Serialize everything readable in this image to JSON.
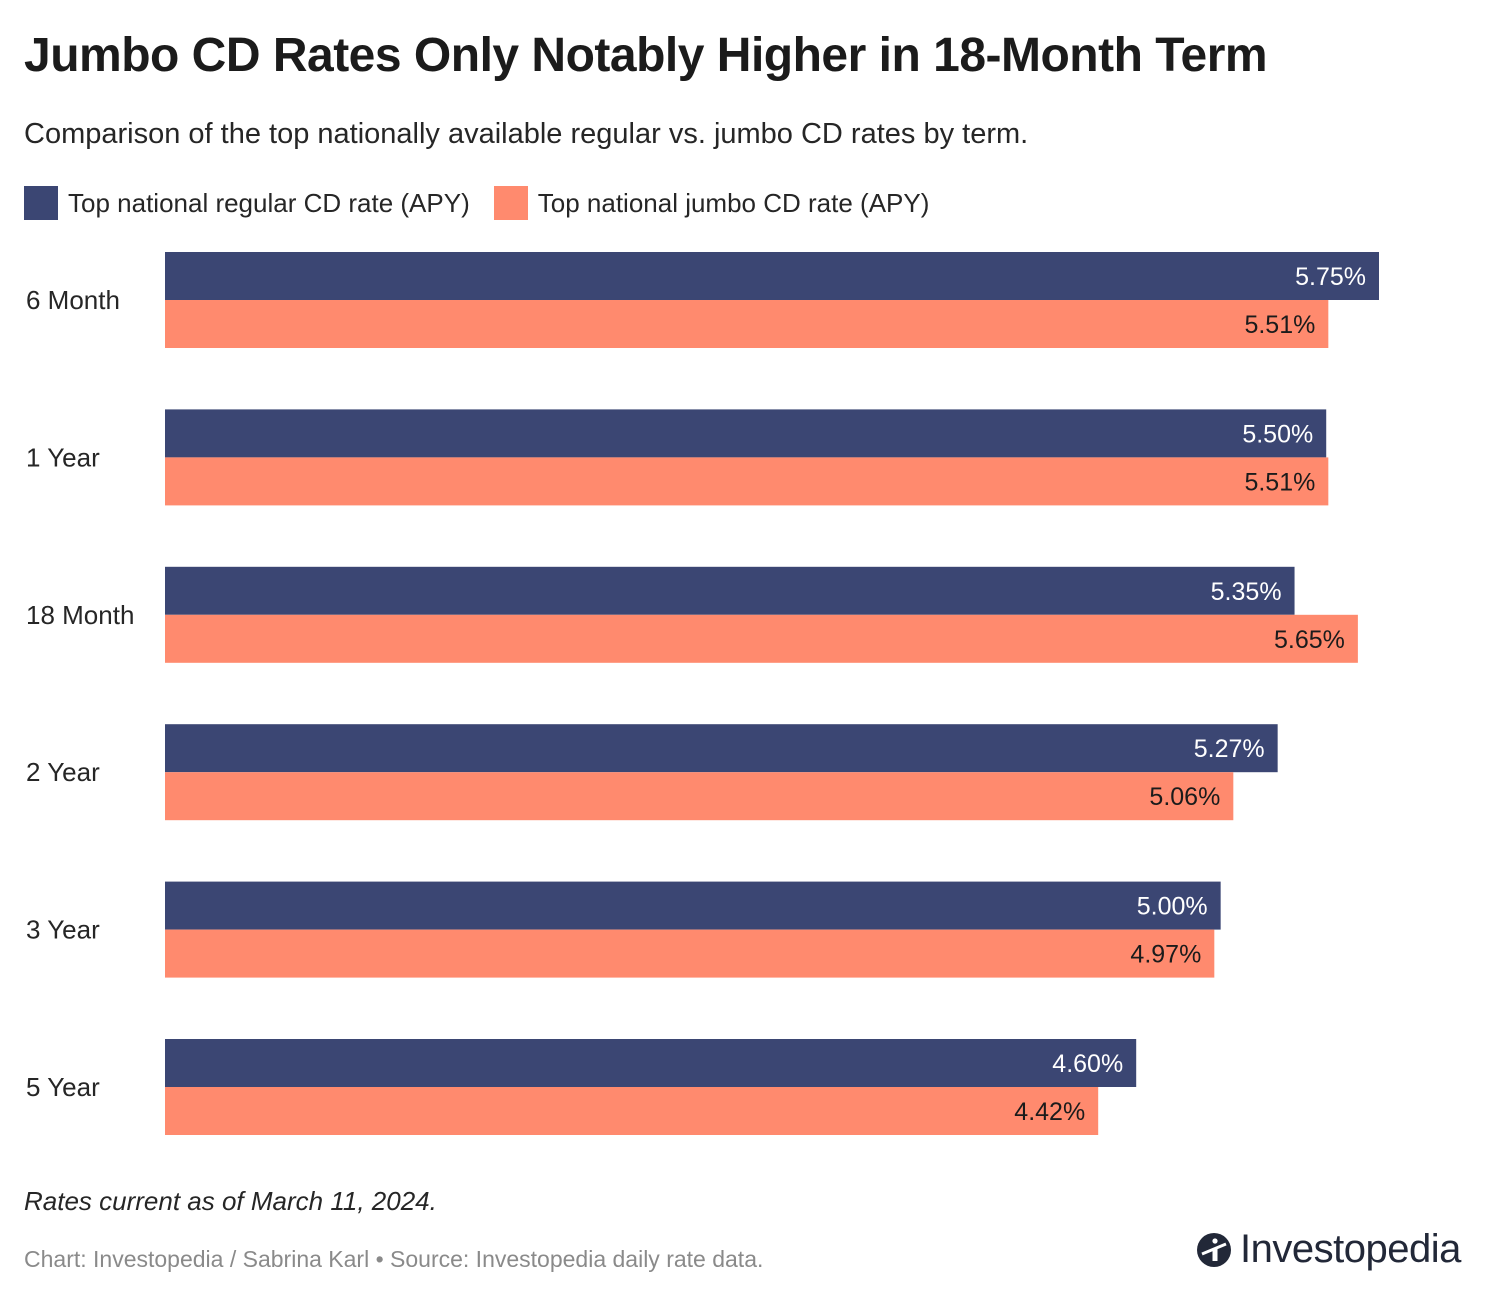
{
  "title": "Jumbo CD Rates Only Notably Higher in 18-Month Term",
  "subtitle": "Comparison of the top nationally available regular vs. jumbo CD rates by term.",
  "note": "Rates current as of March 11, 2024.",
  "credit": "Chart: Investopedia / Sabrina Karl • Source: Investopedia daily rate data.",
  "brand": {
    "name": "Investopedia",
    "icon": "investopedia-logo-icon"
  },
  "colors": {
    "regular": "#3b4673",
    "jumbo": "#ff8a6e",
    "regular_label": "#ffffff",
    "jumbo_label": "#1b1b1b"
  },
  "chart_data": {
    "type": "bar",
    "orientation": "horizontal",
    "categories": [
      "6 Month",
      "1 Year",
      "18 Month",
      "2 Year",
      "3 Year",
      "5 Year"
    ],
    "series": [
      {
        "name": "Top national regular CD rate (APY)",
        "values": [
          5.75,
          5.5,
          5.35,
          5.27,
          5.0,
          4.6
        ],
        "labels": [
          "5.75%",
          "5.50%",
          "5.35%",
          "5.27%",
          "5.00%",
          "4.60%"
        ]
      },
      {
        "name": "Top national jumbo CD rate (APY)",
        "values": [
          5.51,
          5.51,
          5.65,
          5.06,
          4.97,
          4.42
        ],
        "labels": [
          "5.51%",
          "5.51%",
          "5.65%",
          "5.06%",
          "4.97%",
          "4.42%"
        ]
      }
    ],
    "xlim": [
      0,
      5.75
    ],
    "legend_position": "top-left",
    "grid": false
  }
}
